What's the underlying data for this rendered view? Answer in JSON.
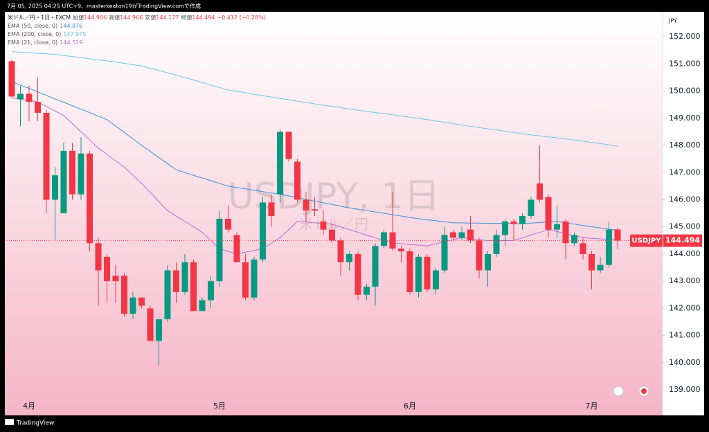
{
  "header": "7月 05, 2025 04:25 UTC+9、masterkeaton19がTradingView.comで作成",
  "footer": "TradingView",
  "chart_data": {
    "type": "candlestick",
    "title": "米ドル／円・1日・FXCM",
    "ohlc_labels": [
      "始値",
      "高値",
      "安値",
      "終値"
    ],
    "change": "−0.412 (−0.28%)",
    "watermark": "USDJPY, 1日",
    "watermark_subtitle": "米ドル／円",
    "symbol": "USDJPY",
    "currency": "JPY",
    "up_color": "#089981",
    "down_color": "#f23645",
    "categories": [
      null,
      null,
      "4月",
      null,
      null,
      null,
      null,
      null,
      null,
      null,
      null,
      null,
      null,
      null,
      null,
      null,
      null,
      null,
      null,
      null,
      null,
      null,
      null,
      null,
      "5月",
      null,
      null,
      null,
      null,
      null,
      null,
      null,
      null,
      null,
      null,
      null,
      null,
      null,
      null,
      null,
      null,
      null,
      null,
      null,
      null,
      null,
      "6月",
      null,
      null,
      null,
      null,
      null,
      null,
      null,
      null,
      null,
      null,
      null,
      null,
      null,
      null,
      null,
      null,
      null,
      null,
      null,
      null,
      "7月",
      null,
      null,
      null
    ],
    "open": [
      151.1,
      149.7,
      149.9,
      149.6,
      149.2,
      146.0,
      145.5,
      147.8,
      146.2,
      147.7,
      144.4,
      143.9,
      143.2,
      143.2,
      141.8,
      142.4,
      142.0,
      140.8,
      141.6,
      143.4,
      142.6,
      143.7,
      141.9,
      142.3,
      143.0,
      145.3,
      144.7,
      143.7,
      142.4,
      143.8,
      145.9,
      146.2,
      148.5,
      147.4,
      146.0,
      145.65,
      145.2,
      144.9,
      144.5,
      143.7,
      144.0,
      142.5,
      142.8,
      144.3,
      144.8,
      144.2,
      144.1,
      142.6,
      143.9,
      142.7,
      143.4,
      144.8,
      144.6,
      144.9,
      144.5,
      143.4,
      144.0,
      144.7,
      145.2,
      145.1,
      145.4,
      146.6,
      146.1,
      144.9,
      145.2,
      144.4,
      144.4,
      144.0,
      143.4,
      143.6,
      144.906
    ],
    "high": [
      151.15,
      150.2,
      150.2,
      150.5,
      149.3,
      147.2,
      148.1,
      148.1,
      148.3,
      147.8,
      144.6,
      144.0,
      143.6,
      143.3,
      142.6,
      142.4,
      142.1,
      141.6,
      143.6,
      143.7,
      144.0,
      143.8,
      142.4,
      143.2,
      145.6,
      145.8,
      144.8,
      144.0,
      143.9,
      146.1,
      146.2,
      148.6,
      148.5,
      147.5,
      146.3,
      146.1,
      145.6,
      145.1,
      144.6,
      144.1,
      144.1,
      142.9,
      144.4,
      144.9,
      146.3,
      144.3,
      144.2,
      144.0,
      144.0,
      143.5,
      145.0,
      144.9,
      145.0,
      145.4,
      144.6,
      144.1,
      144.9,
      145.3,
      145.3,
      145.5,
      146.1,
      148.0,
      146.2,
      145.8,
      145.3,
      144.8,
      144.6,
      144.1,
      143.9,
      145.2,
      144.966
    ],
    "low": [
      149.75,
      148.7,
      148.9,
      148.9,
      145.5,
      144.5,
      145.5,
      146.0,
      146.0,
      144.1,
      142.1,
      142.2,
      142.2,
      141.7,
      141.6,
      142.0,
      140.8,
      139.9,
      141.5,
      142.2,
      142.5,
      141.9,
      141.9,
      142.0,
      142.8,
      144.8,
      143.7,
      142.3,
      142.3,
      143.7,
      145.0,
      145.9,
      147.4,
      145.9,
      145.2,
      145.4,
      144.7,
      144.4,
      143.2,
      143.4,
      142.3,
      142.3,
      142.1,
      144.2,
      144.1,
      143.7,
      142.5,
      142.4,
      142.6,
      142.5,
      143.3,
      144.5,
      144.5,
      144.4,
      143.1,
      142.8,
      143.9,
      144.3,
      144.5,
      144.9,
      145.3,
      145.9,
      144.6,
      144.6,
      143.8,
      144.3,
      143.8,
      142.7,
      143.3,
      143.5,
      144.177
    ],
    "close": [
      149.8,
      149.9,
      149.6,
      149.2,
      146.0,
      146.9,
      147.8,
      146.2,
      147.7,
      144.4,
      143.4,
      143.0,
      143.0,
      141.8,
      142.4,
      142.1,
      140.8,
      141.6,
      143.4,
      142.6,
      143.7,
      141.9,
      142.3,
      143.0,
      145.3,
      144.9,
      143.7,
      142.4,
      143.8,
      145.9,
      145.4,
      148.5,
      147.5,
      146.0,
      145.6,
      145.6,
      144.9,
      144.5,
      143.7,
      144.0,
      142.5,
      142.8,
      144.3,
      144.8,
      144.2,
      144.1,
      142.6,
      143.9,
      142.7,
      143.4,
      144.7,
      144.6,
      144.8,
      144.5,
      143.4,
      144.0,
      144.7,
      145.2,
      145.1,
      145.4,
      146.0,
      146.0,
      144.9,
      145.1,
      144.4,
      144.7,
      144.0,
      143.4,
      143.6,
      144.9,
      144.494
    ],
    "series": [
      {
        "name": "EMA (50, close, 0)",
        "color": "#3a8fd8",
        "values": [
          150.35,
          150.22,
          150.1,
          149.97,
          149.84,
          149.71,
          149.59,
          149.46,
          149.33,
          149.21,
          149.08,
          148.95,
          148.71,
          148.48,
          148.24,
          148.0,
          147.78,
          147.55,
          147.33,
          147.1,
          147.0,
          146.9,
          146.8,
          146.7,
          146.6,
          146.5,
          146.45,
          146.4,
          146.35,
          146.3,
          146.25,
          146.2,
          146.14,
          146.08,
          146.01,
          145.95,
          145.89,
          145.83,
          145.76,
          145.7,
          145.65,
          145.6,
          145.55,
          145.5,
          145.45,
          145.4,
          145.35,
          145.3,
          145.26,
          145.23,
          145.19,
          145.15,
          145.15,
          145.14,
          145.14,
          145.13,
          145.13,
          145.13,
          145.12,
          145.12,
          145.14,
          145.16,
          145.18,
          145.2,
          145.15,
          145.1,
          145.05,
          145.01,
          144.96,
          144.92,
          144.876
        ]
      },
      {
        "name": "EMA (200, close, 0)",
        "color": "#6ec3ea",
        "values": [
          151.45,
          151.43,
          151.41,
          151.39,
          151.37,
          151.35,
          151.31,
          151.27,
          151.23,
          151.19,
          151.15,
          151.11,
          151.07,
          151.02,
          150.97,
          150.93,
          150.84,
          150.76,
          150.67,
          150.59,
          150.5,
          150.41,
          150.32,
          150.22,
          150.13,
          150.04,
          149.99,
          149.94,
          149.88,
          149.83,
          149.78,
          149.73,
          149.68,
          149.63,
          149.58,
          149.53,
          149.48,
          149.44,
          149.39,
          149.34,
          149.3,
          149.25,
          149.21,
          149.17,
          149.13,
          149.08,
          149.04,
          149.0,
          148.95,
          148.9,
          148.85,
          148.8,
          148.75,
          148.7,
          148.66,
          148.61,
          148.57,
          148.52,
          148.48,
          148.43,
          148.39,
          148.35,
          148.31,
          148.28,
          148.24,
          148.2,
          148.16,
          148.11,
          148.07,
          148.02,
          147.975
        ]
      },
      {
        "name": "EMA (21, close, 0)",
        "color": "#b36bd6",
        "values": [
          149.75,
          149.7,
          149.65,
          149.6,
          149.43,
          149.27,
          149.1,
          148.8,
          148.5,
          148.2,
          147.9,
          147.67,
          147.43,
          147.2,
          146.9,
          146.6,
          146.27,
          145.93,
          145.6,
          145.4,
          145.2,
          145.0,
          144.8,
          144.5,
          144.2,
          144.1,
          144.0,
          144.07,
          144.13,
          144.2,
          144.4,
          144.6,
          144.9,
          145.2,
          145.18,
          145.15,
          145.13,
          145.1,
          145.0,
          144.9,
          144.8,
          144.7,
          144.6,
          144.5,
          144.4,
          144.38,
          144.35,
          144.33,
          144.3,
          144.38,
          144.45,
          144.53,
          144.6,
          144.57,
          144.53,
          144.5,
          144.5,
          144.5,
          144.5,
          144.6,
          144.7,
          144.8,
          144.9,
          144.83,
          144.75,
          144.68,
          144.6,
          144.58,
          144.56,
          144.54,
          144.519
        ]
      }
    ],
    "ylim": [
      138.06,
      152.92
    ],
    "yticks": [
      {
        "value": 139,
        "label": "139.000"
      },
      {
        "value": 140,
        "label": "140.000"
      },
      {
        "value": 141,
        "label": "141.000"
      },
      {
        "value": 142,
        "label": "142.000"
      },
      {
        "value": 143,
        "label": "143.000"
      },
      {
        "value": 144,
        "label": "144.000"
      },
      {
        "value": 145,
        "label": "145.000"
      },
      {
        "value": 146,
        "label": "146.000"
      },
      {
        "value": 147,
        "label": "147.000"
      },
      {
        "value": 148,
        "label": "148.000"
      },
      {
        "value": 149,
        "label": "149.000"
      },
      {
        "value": 150,
        "label": "150.000"
      },
      {
        "value": 151,
        "label": "151.000"
      },
      {
        "value": 152,
        "label": "152.000"
      }
    ],
    "grid": false
  }
}
